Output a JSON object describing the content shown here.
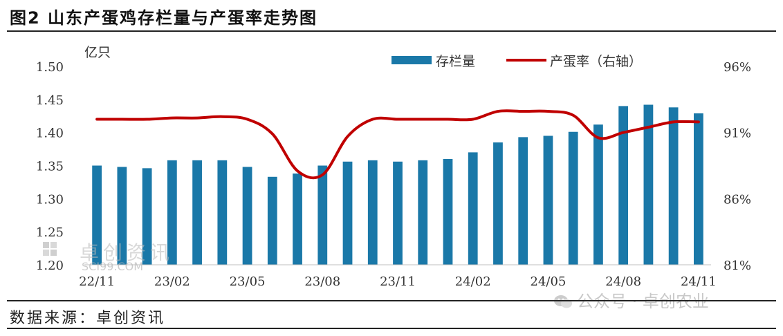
{
  "figure": {
    "title": "图2 山东产蛋鸡存栏量与产蛋率走势图",
    "source": "数据来源：卓创资讯"
  },
  "watermarks": {
    "left_text": "卓创资讯",
    "left_url": "SCI99.COM",
    "right_text": "公众号 · 卓创农业"
  },
  "chart_data": {
    "type": "bar",
    "title": "",
    "left_axis_unit": "亿只",
    "ylim": [
      1.2,
      1.5
    ],
    "yticks": [
      "1.50",
      "1.45",
      "1.40",
      "1.35",
      "1.30",
      "1.25",
      "1.20"
    ],
    "y2lim": [
      81,
      96
    ],
    "y2ticks": [
      "96%",
      "91%",
      "86%",
      "81%"
    ],
    "x_tick_labels": [
      "22/11",
      "23/02",
      "23/05",
      "23/08",
      "23/11",
      "24/02",
      "24/05",
      "24/08",
      "24/11"
    ],
    "categories": [
      "22/11",
      "22/12",
      "23/01",
      "23/02",
      "23/03",
      "23/04",
      "23/05",
      "23/06",
      "23/07",
      "23/08",
      "23/09",
      "23/10",
      "23/11",
      "23/12",
      "24/01",
      "24/02",
      "24/03",
      "24/04",
      "24/05",
      "24/06",
      "24/07",
      "24/08",
      "24/09",
      "24/10",
      "24/11"
    ],
    "series": [
      {
        "name": "存栏量",
        "type": "bar",
        "axis": "left",
        "color": "#1a78a8",
        "values": [
          1.35,
          1.348,
          1.346,
          1.358,
          1.358,
          1.358,
          1.348,
          1.333,
          1.338,
          1.35,
          1.356,
          1.358,
          1.356,
          1.358,
          1.36,
          1.37,
          1.385,
          1.393,
          1.395,
          1.401,
          1.412,
          1.44,
          1.442,
          1.438,
          1.429
        ]
      },
      {
        "name": "产蛋率（右轴）",
        "type": "line",
        "axis": "right",
        "color": "#c00000",
        "values": [
          92.0,
          92.0,
          92.0,
          92.1,
          92.1,
          92.2,
          92.0,
          90.9,
          88.1,
          87.8,
          90.7,
          92.0,
          92.0,
          92.0,
          92.0,
          92.0,
          92.6,
          92.6,
          92.6,
          92.3,
          90.6,
          91.0,
          91.4,
          91.8,
          91.8
        ]
      }
    ],
    "legend_position": "top-right",
    "grid": false
  }
}
